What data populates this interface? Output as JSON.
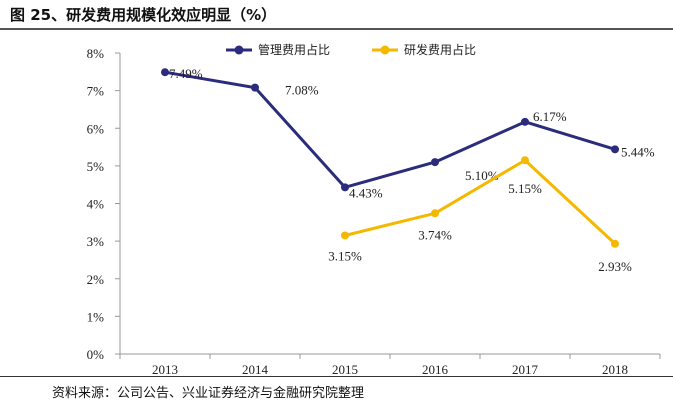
{
  "title": "图 25、研发费用规模化效应明显（%）",
  "source": "资料来源：公司公告、兴业证券经济与金融研究院整理",
  "chart_data": {
    "type": "line",
    "title": "图 25、研发费用规模化效应明显（%）",
    "xlabel": "",
    "ylabel": "",
    "categories": [
      "2013",
      "2014",
      "2015",
      "2016",
      "2017",
      "2018"
    ],
    "ylim": [
      0,
      8
    ],
    "yticks": [
      "0%",
      "1%",
      "2%",
      "3%",
      "4%",
      "5%",
      "6%",
      "7%",
      "8%"
    ],
    "grid": false,
    "legend_position": "top",
    "series": [
      {
        "name": "管理费用占比",
        "color": "#2b2c7c",
        "values": [
          7.49,
          7.08,
          4.43,
          5.1,
          6.17,
          5.44
        ],
        "labels": [
          "7.49%",
          "7.08%",
          "4.43%",
          "5.10%",
          "6.17%",
          "5.44%"
        ]
      },
      {
        "name": "研发费用占比",
        "color": "#f5b800",
        "values": [
          null,
          null,
          3.15,
          3.74,
          5.15,
          2.93
        ],
        "labels": [
          null,
          null,
          "3.15%",
          "3.74%",
          "5.15%",
          "2.93%"
        ]
      }
    ]
  }
}
